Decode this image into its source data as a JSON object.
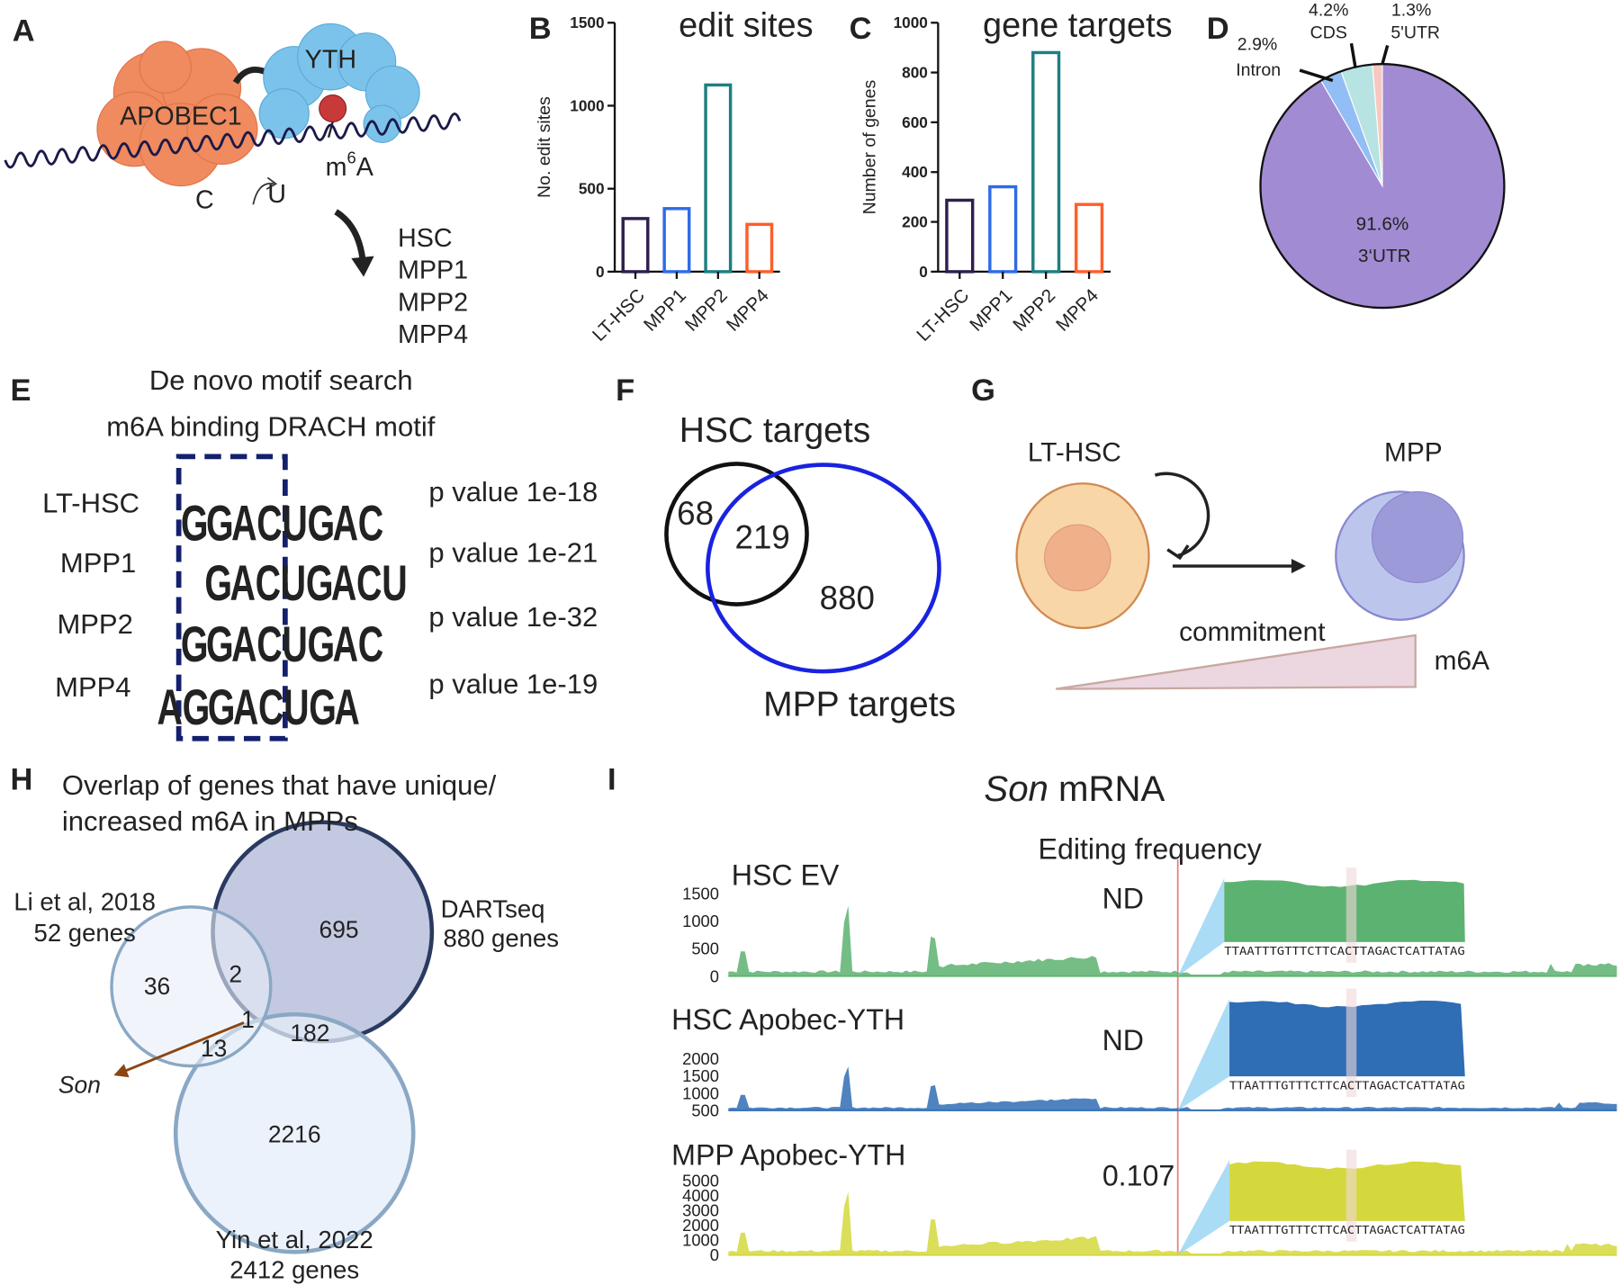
{
  "panel_labels": [
    "A",
    "B",
    "C",
    "D",
    "E",
    "F",
    "G",
    "H",
    "I"
  ],
  "panel_a": {
    "enzyme": "APOBEC1",
    "reader": "YTH",
    "mod_base": "m",
    "mod_sup": "6",
    "mod_end": "A",
    "base_from": "C",
    "base_to": "U",
    "cell_types": [
      "HSC",
      "MPP1",
      "MPP2",
      "MPP4"
    ]
  },
  "chart_data": [
    {
      "type": "bar",
      "title": "edit sites",
      "ylabel": "No. edit sites",
      "categories": [
        "LT-HSC",
        "MPP1",
        "MPP2",
        "MPP4"
      ],
      "values": [
        320,
        380,
        1125,
        285
      ],
      "colors": [
        "#2e1f4f",
        "#2f6be8",
        "#1d7f82",
        "#ff5e2b"
      ],
      "ylim": [
        0,
        1500
      ],
      "yticks": [
        0,
        500,
        1000,
        1500
      ]
    },
    {
      "type": "bar",
      "title": "gene targets",
      "ylabel": "Number of genes",
      "categories": [
        "LT-HSC",
        "MPP1",
        "MPP2",
        "MPP4"
      ],
      "values": [
        287,
        341,
        880,
        270
      ],
      "colors": [
        "#2e1f4f",
        "#2f6be8",
        "#1d7f82",
        "#ff5e2b"
      ],
      "ylim": [
        0,
        1000
      ],
      "yticks": [
        0,
        200,
        400,
        600,
        800,
        1000
      ]
    },
    {
      "type": "pie",
      "categories": [
        "3‘UTR",
        "Intron",
        "CDS",
        "5'UTR"
      ],
      "values": [
        91.6,
        2.9,
        4.2,
        1.3
      ],
      "value_labels": [
        "91.6%",
        "2.9%",
        "4.2%",
        "1.3%"
      ],
      "colors": [
        "#a18bd3",
        "#93bdf5",
        "#b7e3e2",
        "#f6c8c0"
      ]
    }
  ],
  "panel_e": {
    "title": "De novo motif search",
    "subtitle": "m6A binding DRACH motif",
    "rows": [
      {
        "label": "LT-HSC",
        "motif": [
          "G",
          "G",
          "A",
          "C",
          "U",
          "G",
          "A",
          "C"
        ],
        "p": "p value 1e-18"
      },
      {
        "label": "MPP1",
        "motif": [
          "G",
          "A",
          "C",
          "U",
          "G",
          "A",
          "C",
          "U"
        ],
        "p": "p value 1e-21"
      },
      {
        "label": "MPP2",
        "motif": [
          "G",
          "G",
          "A",
          "C",
          "U",
          "G",
          "A",
          "C"
        ],
        "p": "p value 1e-32"
      },
      {
        "label": "MPP4",
        "motif": [
          "A",
          "G",
          "G",
          "A",
          "C",
          "U",
          "G",
          "A"
        ],
        "p": "p value 1e-19"
      }
    ]
  },
  "panel_f": {
    "set_a": "HSC targets",
    "set_b": "MPP targets",
    "only_a": "68",
    "both": "219",
    "only_b": "880"
  },
  "panel_g": {
    "from": "LT-HSC",
    "to": "MPP",
    "process": "commitment",
    "gradient": "m6A"
  },
  "panel_h": {
    "title_lines": [
      "Overlap of genes that have unique/",
      "increased m6A in MPPs"
    ],
    "sets": [
      {
        "name": "Li et al, 2018",
        "size": "52 genes"
      },
      {
        "name": "DARTseq",
        "size": "880 genes"
      },
      {
        "name": "Yin et al, 2022",
        "size": "2412 genes"
      }
    ],
    "regions": {
      "li_only": "36",
      "li_dart": "2",
      "dart_only": "695",
      "all": "1",
      "li_yin": "13",
      "dart_yin": "182",
      "yin_only": "2216"
    },
    "callout": "Son"
  },
  "panel_i": {
    "gene": "Son",
    "title_rest": " mRNA",
    "column": "Editing frequency",
    "sequence": "TTAATTTGTTTCTTCACTTAGACTCATTATAG",
    "tracks": [
      {
        "label": "HSC EV",
        "ticks": [
          "1500",
          "1000",
          "500",
          "0"
        ],
        "freq": "ND",
        "color": "#5cb270"
      },
      {
        "label": "HSC Apobec-YTH",
        "ticks": [
          "2000",
          "1500",
          "1000",
          "500"
        ],
        "freq": "ND",
        "color": "#2f6db5"
      },
      {
        "label": "MPP Apobec-YTH",
        "ticks": [
          "5000",
          "4000",
          "3000",
          "2000",
          "1000",
          "0"
        ],
        "freq": "0.107",
        "color": "#d4d83c"
      }
    ]
  }
}
